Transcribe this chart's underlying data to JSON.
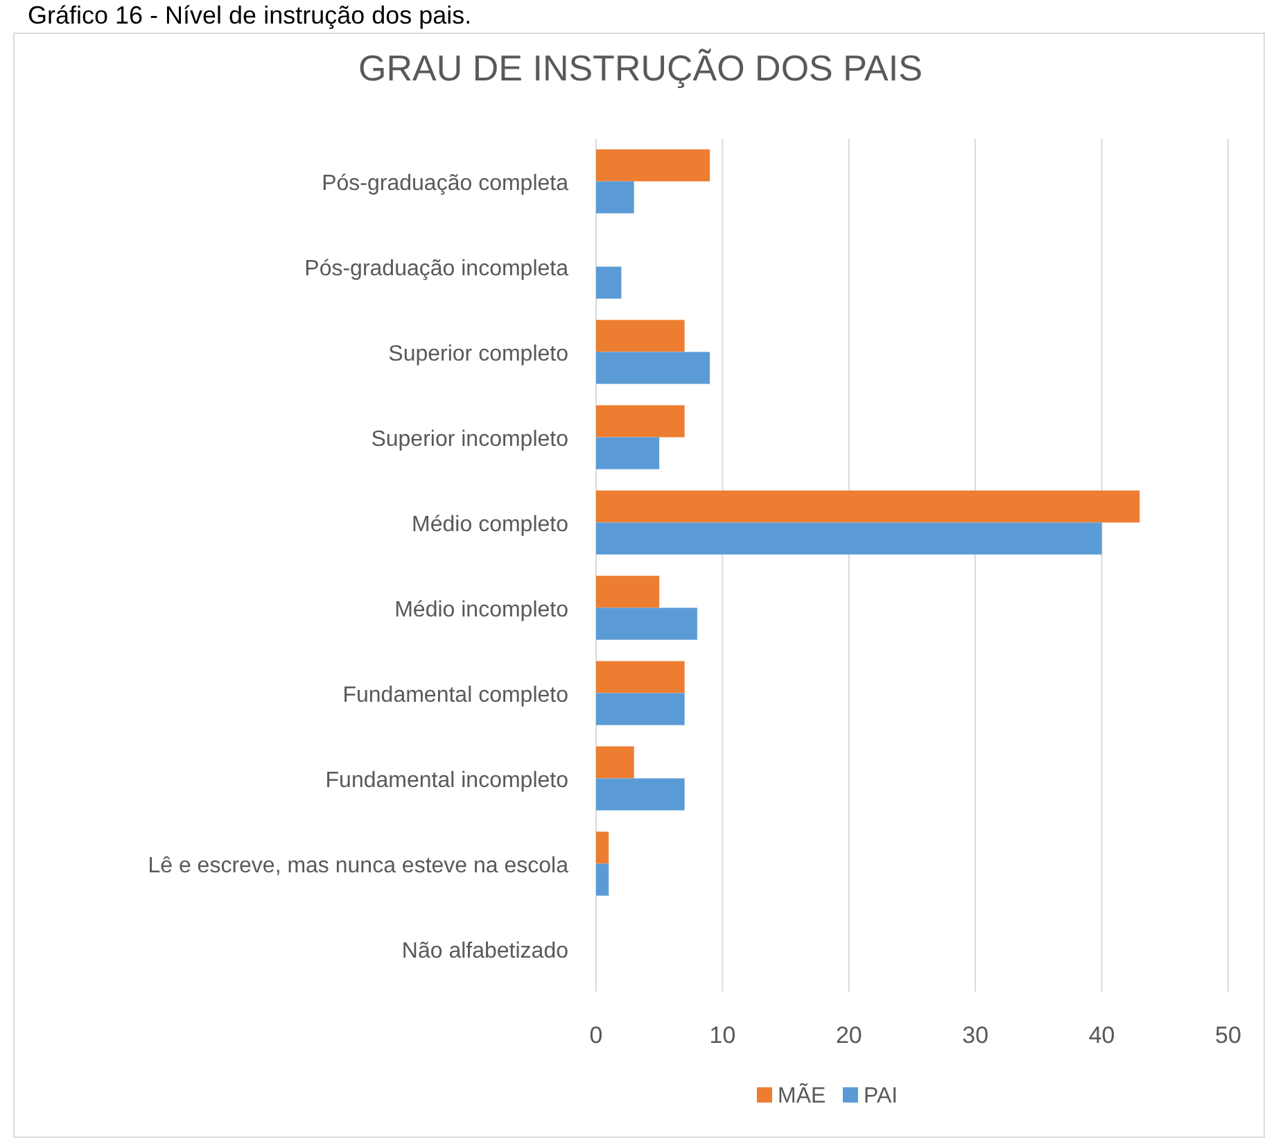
{
  "chart_data": {
    "type": "bar",
    "orientation": "horizontal",
    "title": "GRAU DE INSTRUÇÃO DOS PAIS",
    "annotations": [
      "Gráfico 16 - Nível de instrução dos pais."
    ],
    "categories": [
      "Pós-graduação completa",
      "Pós-graduação incompleta",
      "Superior completo",
      "Superior incompleto",
      "Médio completo",
      "Médio incompleto",
      "Fundamental completo",
      "Fundamental incompleto",
      "Lê e escreve, mas nunca esteve na escola",
      "Não alfabetizado"
    ],
    "series": [
      {
        "name": "MÃE",
        "color": "#ed7d31",
        "values": [
          9,
          0,
          7,
          7,
          43,
          5,
          7,
          3,
          1,
          0
        ]
      },
      {
        "name": "PAI",
        "color": "#5b9bd5",
        "values": [
          3,
          2,
          9,
          5,
          40,
          8,
          7,
          7,
          1,
          0
        ]
      }
    ],
    "xlim": [
      0,
      50
    ],
    "xticks": [
      0,
      10,
      20,
      30,
      40,
      50
    ],
    "grid": "x",
    "legend": "bottom"
  }
}
